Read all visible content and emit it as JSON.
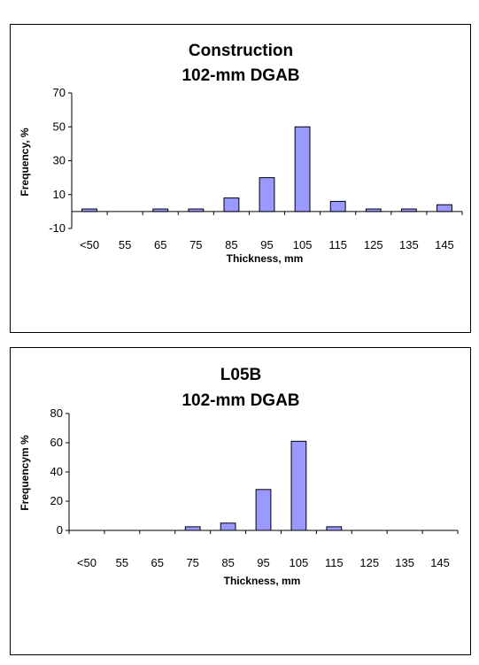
{
  "chart_data": [
    {
      "type": "bar",
      "title": [
        "Construction",
        "102-mm DGAB"
      ],
      "xlabel": "Thickness, mm",
      "ylabel": "Frequency, %",
      "categories": [
        "<50",
        "55",
        "65",
        "75",
        "85",
        "95",
        "105",
        "115",
        "125",
        "135",
        "145"
      ],
      "values": [
        1.5,
        0,
        1.5,
        1.5,
        8,
        20,
        50,
        6,
        1.5,
        1.5,
        4
      ],
      "ylim": [
        -10,
        70
      ],
      "yticks": [
        "-10",
        "10",
        "30",
        "50",
        "70"
      ],
      "grid": false,
      "legend": "none",
      "bar_color": "#9999ff"
    },
    {
      "type": "bar",
      "title": [
        "L05B",
        "102-mm DGAB"
      ],
      "xlabel": "Thickness, mm",
      "ylabel": "Frequencym %",
      "categories": [
        "<50",
        "55",
        "65",
        "75",
        "85",
        "95",
        "105",
        "115",
        "125",
        "135",
        "145"
      ],
      "values": [
        0,
        0,
        0,
        2.5,
        5,
        28,
        61,
        2.5,
        0,
        0,
        0
      ],
      "ylim": [
        0,
        80
      ],
      "yticks": [
        "0",
        "20",
        "40",
        "60",
        "80"
      ],
      "grid": false,
      "legend": "none",
      "bar_color": "#9999ff"
    }
  ]
}
